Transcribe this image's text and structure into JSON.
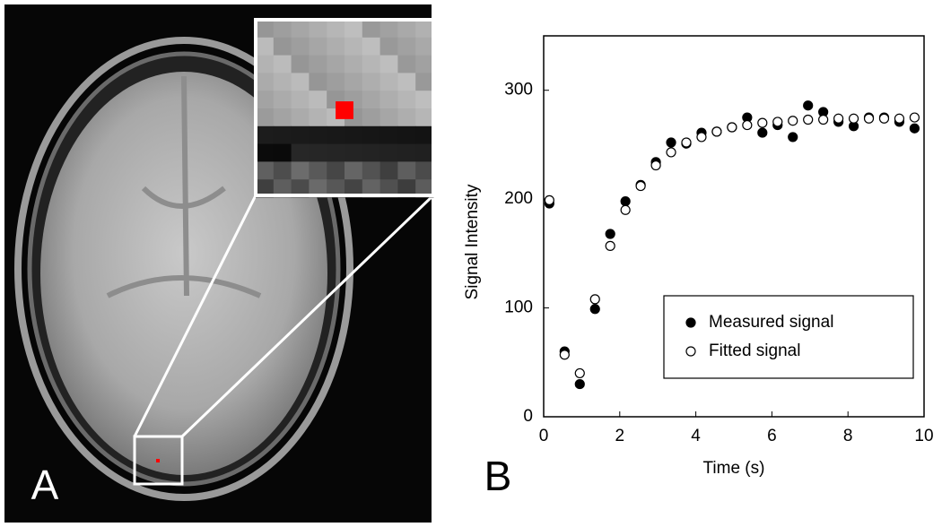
{
  "panels": {
    "left_label": "A",
    "right_label": "B"
  },
  "chart_data": {
    "type": "scatter",
    "x_label": "Time (s)",
    "y_label": "Signal Intensity",
    "x": [
      0.15,
      0.55,
      0.95,
      1.35,
      1.75,
      2.15,
      2.55,
      2.95,
      3.35,
      3.75,
      4.15,
      4.55,
      4.95,
      5.35,
      5.75,
      6.15,
      6.55,
      6.95,
      7.35,
      7.75,
      8.15,
      8.55,
      8.95,
      9.35,
      9.75
    ],
    "series": [
      {
        "name": "Measured signal",
        "color": "#000000",
        "filled": true,
        "values": [
          196,
          60,
          30,
          99,
          168,
          198,
          213,
          234,
          252,
          251,
          261,
          262,
          266,
          275,
          261,
          268,
          257,
          286,
          280,
          271,
          267,
          275,
          275,
          271,
          265
        ]
      },
      {
        "name": "Fitted signal",
        "color": "#000000",
        "filled": false,
        "values": [
          199,
          57,
          40,
          108,
          157,
          190,
          212,
          231,
          243,
          252,
          257,
          262,
          266,
          268,
          270,
          271,
          272,
          273,
          273,
          274,
          274,
          274,
          274,
          274,
          275
        ]
      }
    ],
    "xlim": [
      0,
      10
    ],
    "ylim": [
      0,
      350
    ],
    "xticks": [
      0,
      2,
      4,
      6,
      8,
      10
    ],
    "yticks": [
      0,
      100,
      200,
      300
    ],
    "legend": "lower-right"
  }
}
